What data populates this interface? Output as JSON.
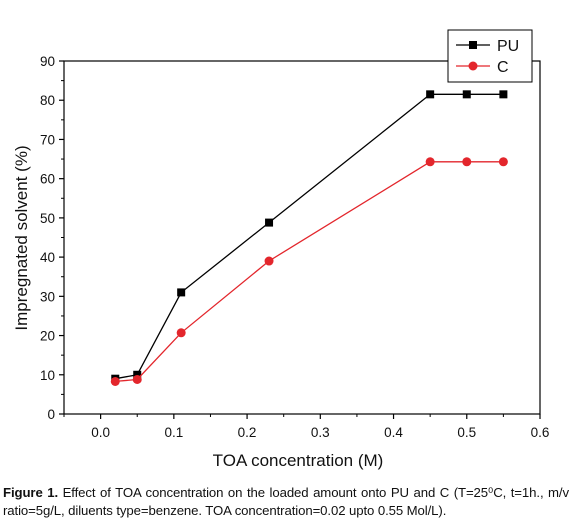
{
  "chart_data": {
    "type": "line",
    "xlabel": "TOA concentration (M)",
    "ylabel": "Impregnated solvent (%)",
    "xlim": [
      -0.05,
      0.6
    ],
    "ylim": [
      0,
      90
    ],
    "xticks": [
      "0.0",
      "0.1",
      "0.2",
      "0.3",
      "0.4",
      "0.5",
      "0.6"
    ],
    "yticks": [
      "0",
      "10",
      "20",
      "30",
      "40",
      "50",
      "60",
      "70",
      "80",
      "90"
    ],
    "legend_position": "top-right",
    "series": [
      {
        "name": "PU",
        "color": "#000000",
        "marker": "square",
        "x": [
          0.02,
          0.05,
          0.11,
          0.23,
          0.45,
          0.5,
          0.55
        ],
        "y": [
          9.0,
          10.0,
          31.0,
          48.8,
          81.5,
          81.5,
          81.5
        ]
      },
      {
        "name": "C",
        "color": "#e3262c",
        "marker": "circle",
        "x": [
          0.02,
          0.05,
          0.11,
          0.23,
          0.45,
          0.5,
          0.55
        ],
        "y": [
          8.3,
          8.8,
          20.7,
          39.0,
          64.3,
          64.3,
          64.3
        ]
      }
    ]
  },
  "caption": {
    "label": "Figure 1.",
    "text": " Effect of TOA concentration on the loaded amount onto PU and C (T=25⁰C, t=1h., m/v ratio=5g/L, diluents type=benzene. TOA concentration=0.02 upto 0.55 Mol/L)."
  }
}
